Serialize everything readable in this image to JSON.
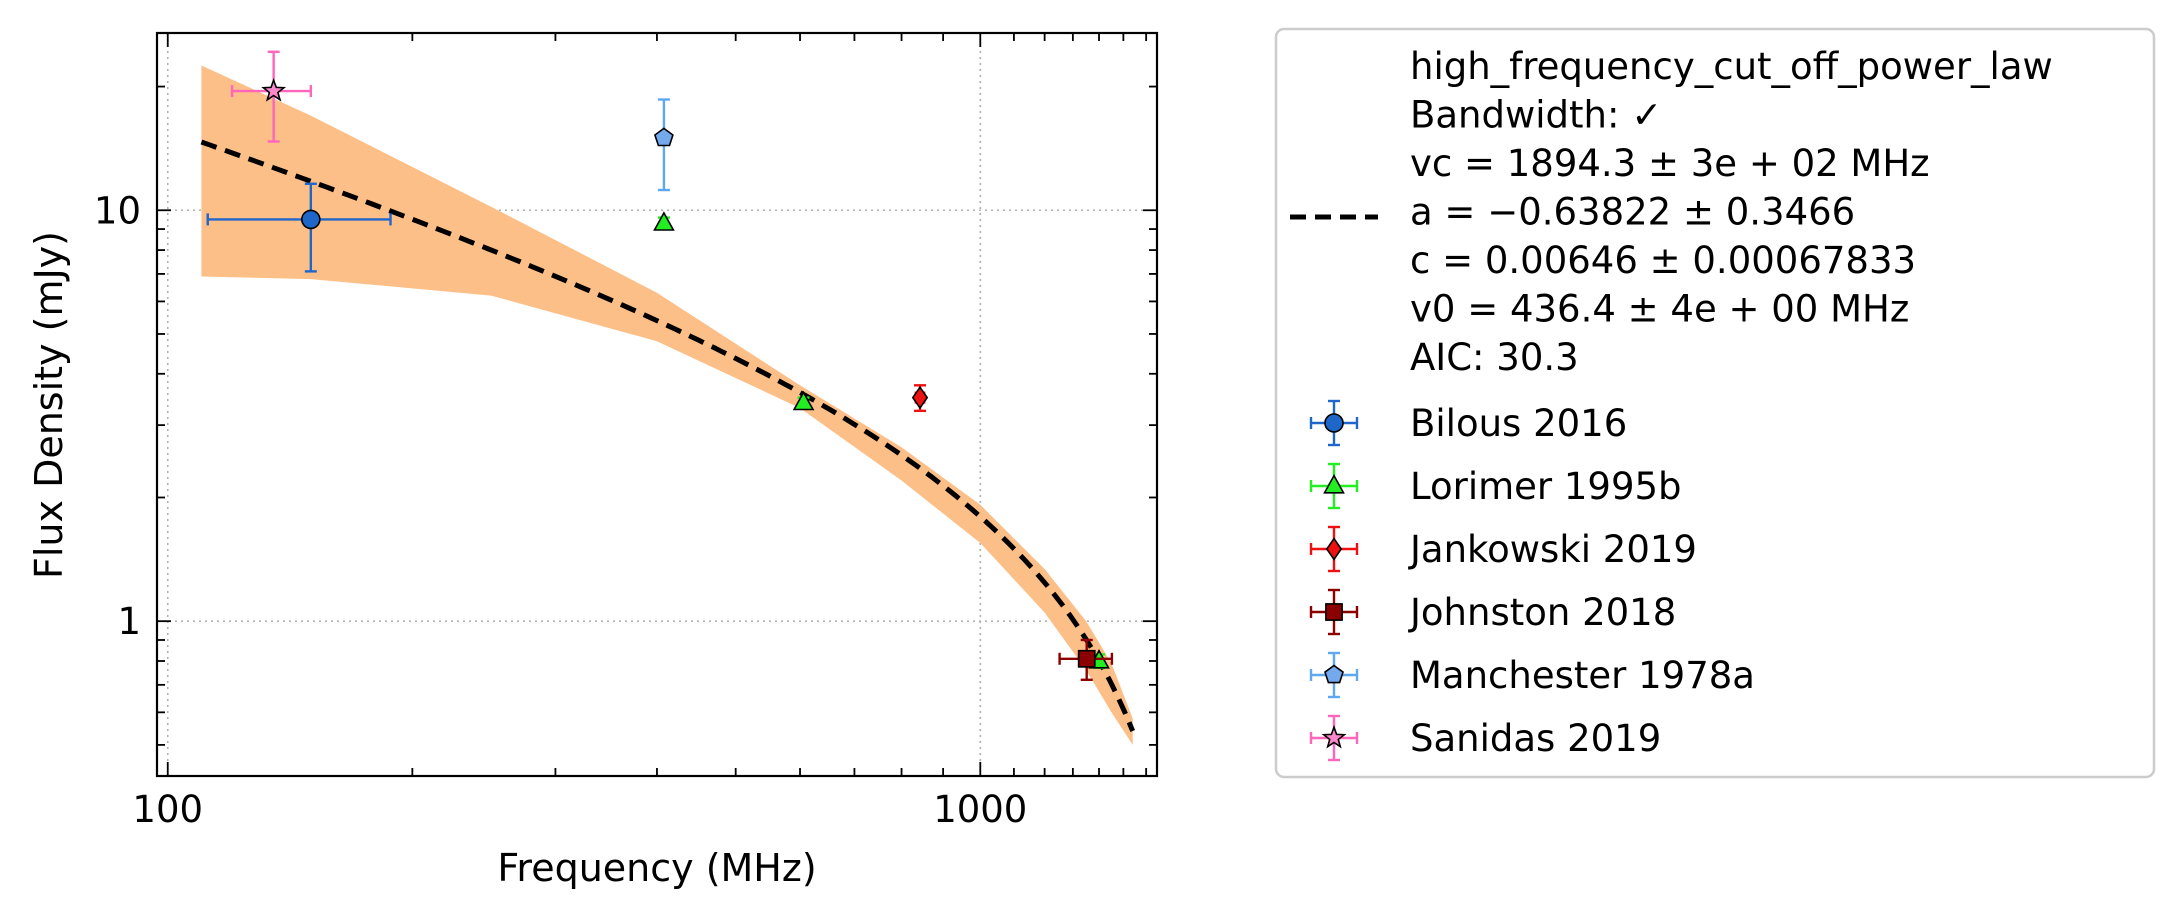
{
  "chart_data": {
    "type": "scatter",
    "xlabel": "Frequency (MHz)",
    "ylabel": "Flux Density (mJy)",
    "xscale": "log",
    "yscale": "log",
    "xlim": [
      97,
      1650
    ],
    "ylim": [
      0.42,
      27
    ],
    "xticks": [
      {
        "value": 100,
        "label": "100"
      },
      {
        "value": 1000,
        "label": "1000"
      }
    ],
    "yticks": [
      {
        "value": 1,
        "label": "1"
      },
      {
        "value": 10,
        "label": "10"
      }
    ],
    "grid": true,
    "legend_position": "outside-right",
    "fit": {
      "model": "high_frequency_cut_off_power_law",
      "vc": 1894.3,
      "a": -0.63822,
      "c": 0.00646,
      "v0": 436.4,
      "x_range": [
        110,
        1540
      ],
      "band_upper": [
        [
          110,
          22.5
        ],
        [
          150,
          17.0
        ],
        [
          250,
          10.2
        ],
        [
          400,
          6.3
        ],
        [
          600,
          3.75
        ],
        [
          800,
          2.65
        ],
        [
          1000,
          1.92
        ],
        [
          1200,
          1.34
        ],
        [
          1350,
          1.0
        ],
        [
          1450,
          0.79
        ],
        [
          1540,
          0.58
        ]
      ],
      "band_lower": [
        [
          110,
          6.9
        ],
        [
          150,
          6.8
        ],
        [
          250,
          6.2
        ],
        [
          400,
          4.8
        ],
        [
          600,
          3.3
        ],
        [
          800,
          2.2
        ],
        [
          1000,
          1.55
        ],
        [
          1200,
          1.05
        ],
        [
          1350,
          0.76
        ],
        [
          1450,
          0.6
        ],
        [
          1540,
          0.5
        ]
      ],
      "legend_lines": [
        "high_frequency_cut_off_power_law",
        "Bandwidth: ✓",
        "vc = 1894.3 ± 3e + 02 MHz",
        "a = −0.63822 ± 0.3466",
        "c = 0.00646 ± 0.00067833",
        "v0 = 436.4 ± 4e + 00 MHz",
        "AIC: 30.3"
      ]
    },
    "series": [
      {
        "name": "Bilous 2016",
        "marker": "circle",
        "color": "#1f66c9",
        "ecolor": "#1f66c9",
        "points": [
          {
            "x": 150,
            "y": 9.5,
            "xerr": [
              38,
              38
            ],
            "yerr": [
              2.4,
              2.1
            ]
          }
        ]
      },
      {
        "name": "Lorimer 1995b",
        "marker": "triangle",
        "color": "#22ee22",
        "ecolor": "#22ee22",
        "points": [
          {
            "x": 408,
            "y": 9.3,
            "xerr": [
              0,
              0
            ],
            "yerr": [
              0.3,
              0.3
            ]
          },
          {
            "x": 606,
            "y": 3.4,
            "xerr": [
              0,
              0
            ],
            "yerr": [
              0.1,
              0.1
            ]
          },
          {
            "x": 1400,
            "y": 0.8,
            "xerr": [
              0,
              0
            ],
            "yerr": [
              0.03,
              0.03
            ]
          }
        ]
      },
      {
        "name": "Jankowski 2019",
        "marker": "diamond",
        "color": "#ee1111",
        "ecolor": "#ee1111",
        "points": [
          {
            "x": 843,
            "y": 3.5,
            "xerr": [
              10,
              10
            ],
            "yerr": [
              0.25,
              0.25
            ]
          }
        ]
      },
      {
        "name": "Johnston 2018",
        "marker": "square",
        "color": "#8b0000",
        "ecolor": "#8b0000",
        "points": [
          {
            "x": 1352,
            "y": 0.81,
            "xerr": [
              100,
              100
            ],
            "yerr": [
              0.09,
              0.09
            ]
          }
        ]
      },
      {
        "name": "Manchester 1978a",
        "marker": "pentagon",
        "color": "#74a9ee",
        "ecolor": "#5fa8f0",
        "points": [
          {
            "x": 408,
            "y": 15.0,
            "xerr": [
              0,
              0
            ],
            "yerr": [
              3.8,
              3.6
            ]
          }
        ]
      },
      {
        "name": "Sanidas 2019",
        "marker": "star",
        "color": "#ff88cc",
        "ecolor": "#ff66bb",
        "points": [
          {
            "x": 135,
            "y": 19.5,
            "xerr": [
              15,
              15
            ],
            "yerr": [
              4.8,
              4.8
            ]
          }
        ]
      }
    ],
    "colors": {
      "band": "#fdbf88",
      "fit_line": "#000000",
      "grid": "#b0b0b0",
      "legend_border": "#cccccc"
    }
  }
}
